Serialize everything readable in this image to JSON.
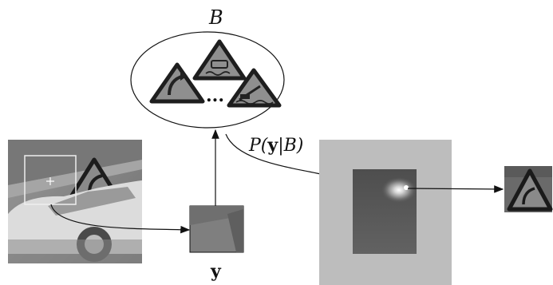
{
  "labels": {
    "set_symbol": "B",
    "ellipsis": "...",
    "likelihood_prefix": "P(",
    "likelihood_var": "y",
    "likelihood_suffix": "|B)",
    "patch_symbol": "y"
  },
  "colors": {
    "line": "#111111",
    "sign_fill": "#8a8a8a",
    "sign_border": "#1e1e1e",
    "response_bg": "#bdbdbd",
    "response_map": "#555555",
    "street_photo": "#8c8c8c"
  },
  "icons": [
    "road-sign-curve-icon",
    "road-sign-slippery-icon",
    "road-sign-quay-icon"
  ]
}
